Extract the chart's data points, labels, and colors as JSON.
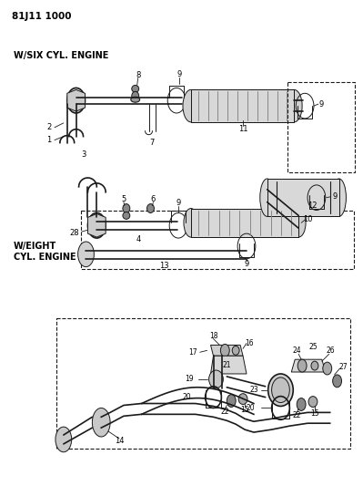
{
  "title": "81J11 1000",
  "bg_color": "#ffffff",
  "line_color": "#1a1a1a",
  "label_six": "W/SIX CYL. ENGINE",
  "label_eight_1": "W/EIGHT",
  "label_eight_2": "CYL. ENGINE"
}
